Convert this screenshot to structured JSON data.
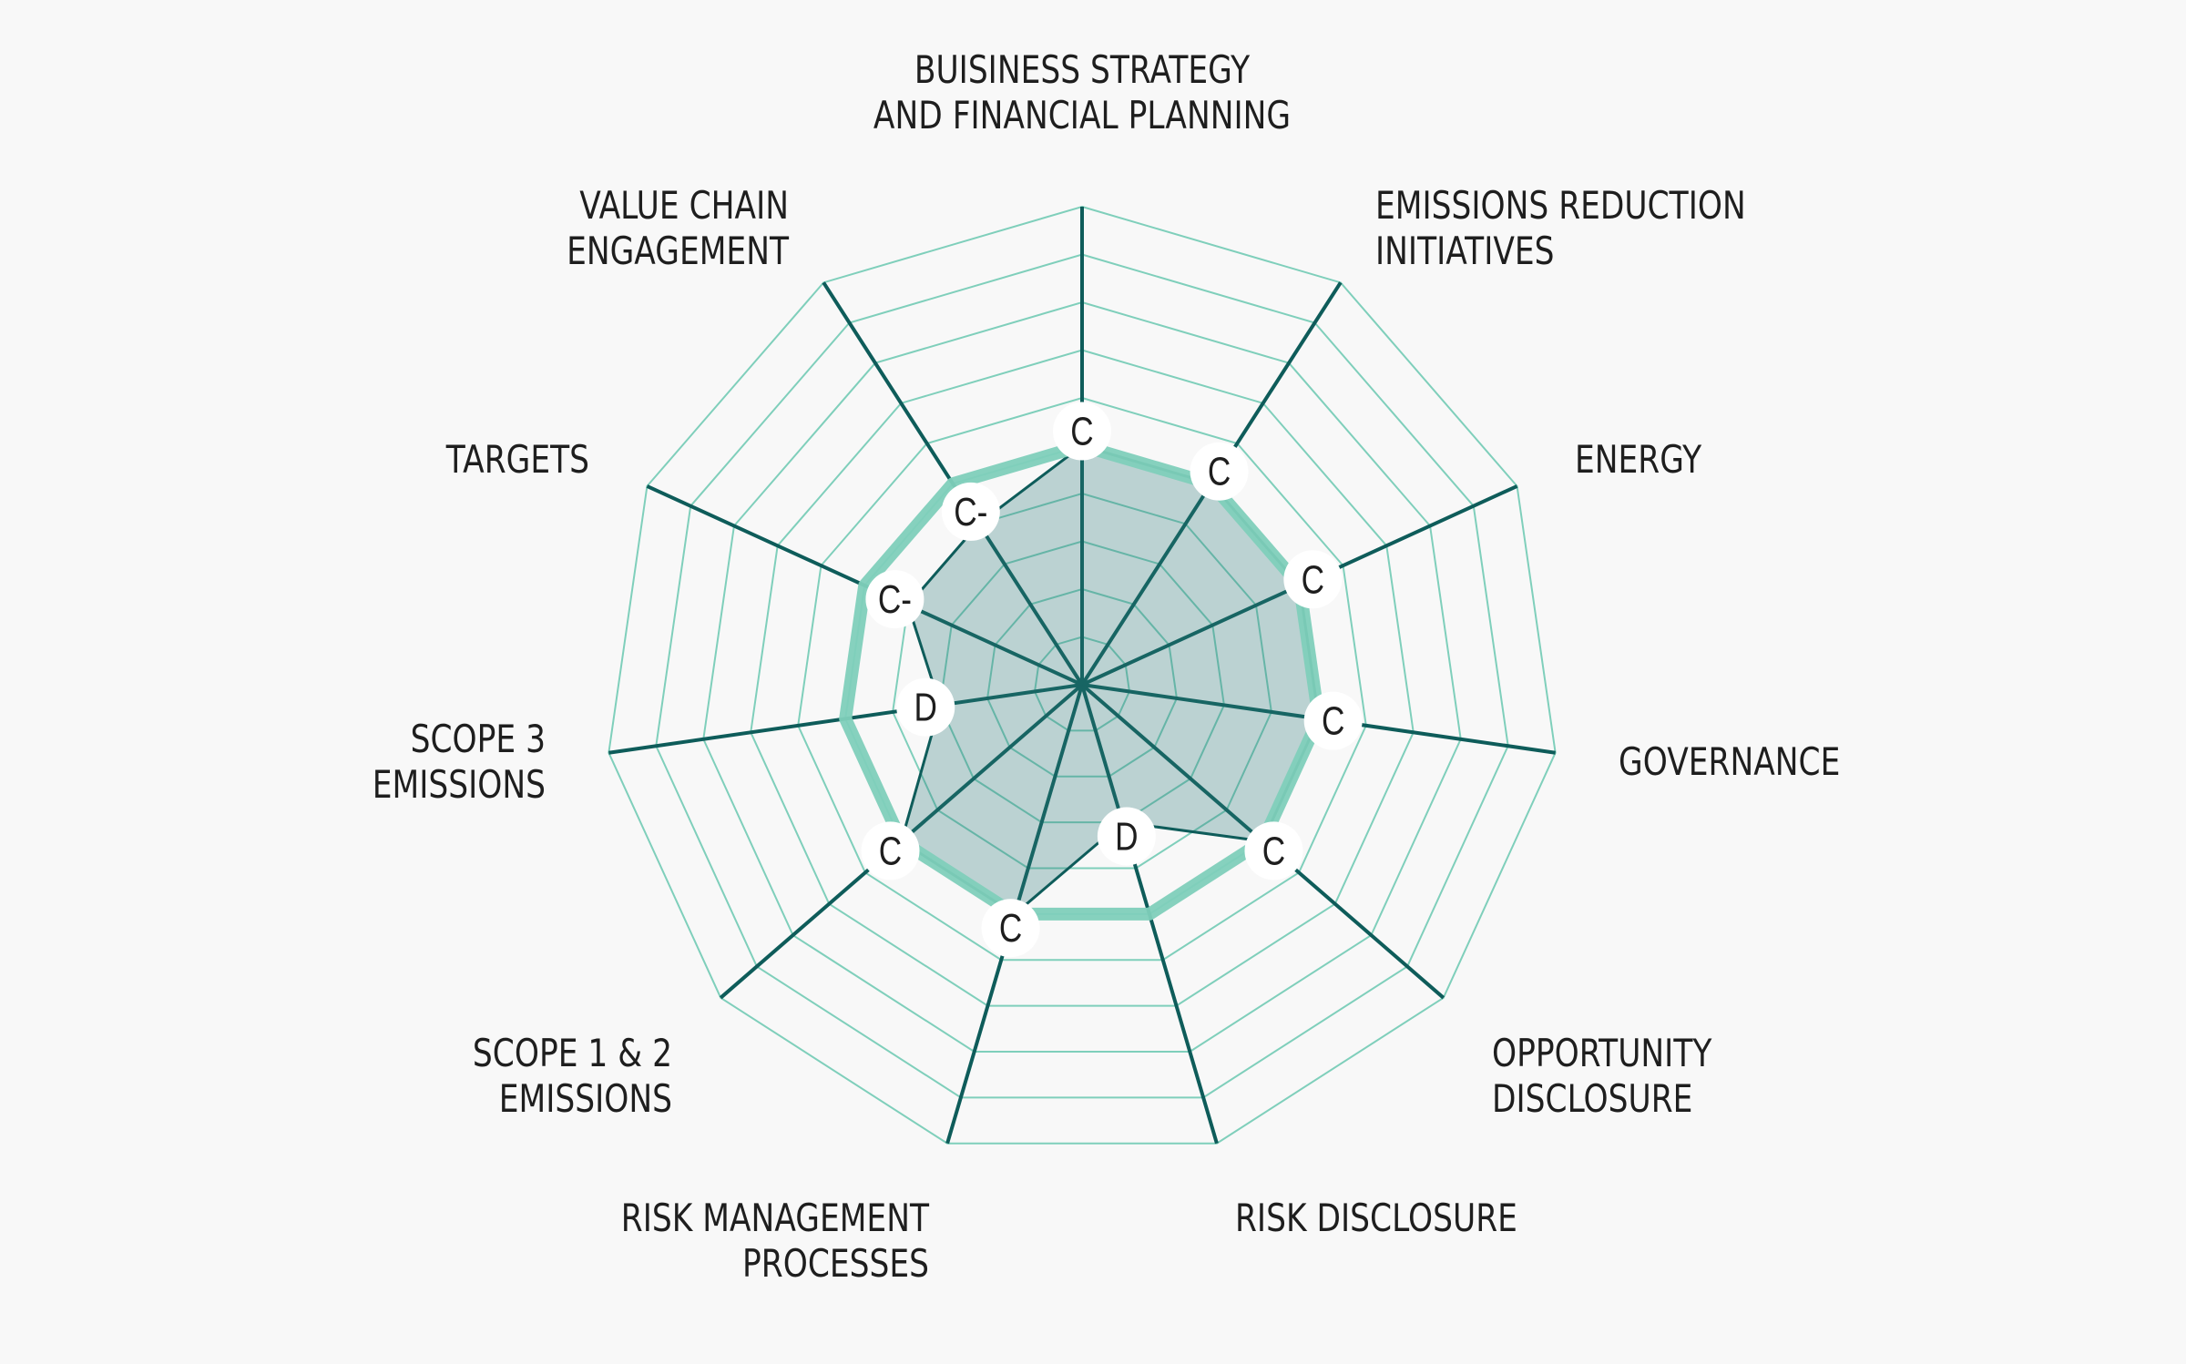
{
  "colors": {
    "background": "#f8f8f8",
    "grid": "#7fcfbb",
    "spoke": "#0e5c5a",
    "benchmark": "#7fcfbb",
    "company_fill": "#2e7b7b",
    "company_stroke": "#0e5c5a",
    "text": "#1e1e1e"
  },
  "chart_data": {
    "type": "radar",
    "title": "",
    "scale_levels": 10,
    "categories": [
      "BUISINESS STRATEGY\nAND FINANCIAL PLANNING",
      "EMISSIONS REDUCTION\nINITIATIVES",
      "ENERGY",
      "GOVERNANCE",
      "OPPORTUNITY\nDISCLOSURE",
      "RISK DISCLOSURE",
      "RISK MANAGEMENT\nPROCESSES",
      "SCOPE 1 & 2\nEMISSIONS",
      "SCOPE 3\nEMISSIONS",
      "TARGETS",
      "VALUE CHAIN\nENGAGEMENT"
    ],
    "series": [
      {
        "role": "company",
        "values": [
          5,
          5,
          5,
          5,
          5,
          3,
          5,
          5,
          3,
          4,
          4
        ],
        "grades": [
          "C",
          "C",
          "C",
          "C",
          "C",
          "D",
          "C",
          "C",
          "D",
          "C-",
          "C-"
        ]
      },
      {
        "role": "benchmark",
        "values": [
          5,
          5,
          5,
          5,
          5,
          5,
          5,
          5,
          5,
          5,
          5
        ]
      }
    ]
  }
}
